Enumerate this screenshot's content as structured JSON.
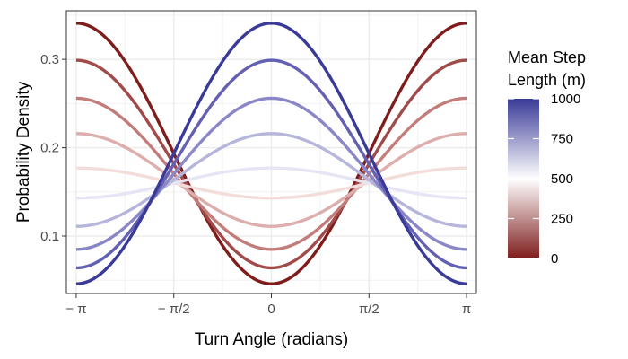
{
  "chart_data": {
    "type": "line",
    "xlabel": "Turn Angle (radians)",
    "ylabel": "Probability Density",
    "xlim": [
      -3.3,
      3.3
    ],
    "ylim": [
      0.035,
      0.355
    ],
    "x_ticks": [
      {
        "value": -3.14159,
        "label": "− π"
      },
      {
        "value": -1.5708,
        "label": "− π/2"
      },
      {
        "value": 0,
        "label": "0"
      },
      {
        "value": 1.5708,
        "label": "π/2"
      },
      {
        "value": 3.14159,
        "label": "π"
      }
    ],
    "y_ticks": [
      {
        "value": 0.1,
        "label": "0.1"
      },
      {
        "value": 0.2,
        "label": "0.2"
      },
      {
        "value": 0.3,
        "label": "0.3"
      }
    ],
    "grid": true,
    "series": [
      {
        "step_length": 0,
        "color": "#7f1d1d",
        "value_at_0": 0.046,
        "value_at_pi": 0.341
      },
      {
        "step_length": 111,
        "color": "#a04b4a",
        "value_at_0": 0.064,
        "value_at_pi": 0.299
      },
      {
        "step_length": 222,
        "color": "#c27d7b",
        "value_at_0": 0.085,
        "value_at_pi": 0.256
      },
      {
        "step_length": 333,
        "color": "#dcaeac",
        "value_at_0": 0.111,
        "value_at_pi": 0.216
      },
      {
        "step_length": 444,
        "color": "#f3dddb",
        "value_at_0": 0.143,
        "value_at_pi": 0.177
      },
      {
        "step_length": 556,
        "color": "#e6e5f4",
        "value_at_0": 0.177,
        "value_at_pi": 0.143
      },
      {
        "step_length": 667,
        "color": "#b6b5db",
        "value_at_0": 0.216,
        "value_at_pi": 0.111
      },
      {
        "step_length": 778,
        "color": "#8a87c6",
        "value_at_0": 0.256,
        "value_at_pi": 0.085
      },
      {
        "step_length": 889,
        "color": "#6460b2",
        "value_at_0": 0.299,
        "value_at_pi": 0.064
      },
      {
        "step_length": 1000,
        "color": "#3a3a98",
        "value_at_0": 0.341,
        "value_at_pi": 0.046
      }
    ],
    "legend": {
      "title_line1": "Mean Step",
      "title_line2": "Length (m)",
      "position": "right",
      "range": [
        0,
        1000
      ],
      "ticks": [
        {
          "value": 1000,
          "label": "1000"
        },
        {
          "value": 750,
          "label": "750"
        },
        {
          "value": 500,
          "label": "500"
        },
        {
          "value": 250,
          "label": "250"
        },
        {
          "value": 0,
          "label": "0"
        }
      ],
      "colors": {
        "low": "#7f1d1d",
        "mid": "#ffffff",
        "high": "#3a3a98"
      }
    }
  }
}
